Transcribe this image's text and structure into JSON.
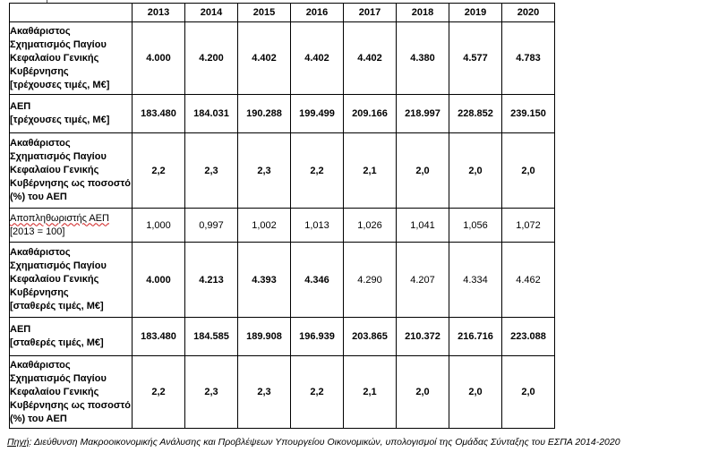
{
  "table": {
    "years": [
      "2013",
      "2014",
      "2015",
      "2016",
      "2017",
      "2018",
      "2019",
      "2020"
    ],
    "rows": [
      {
        "label_lines": [
          "Ακαθάριστος Σχηματισμός Παγίου Κεφαλαίου Γενικής Κυβέρνησης",
          "[τρέχουσες τιμές, Μ€]"
        ],
        "values": [
          "4.000",
          "4.200",
          "4.402",
          "4.402",
          "4.402",
          "4.380",
          "4.577",
          "4.783"
        ]
      },
      {
        "label_lines": [
          "ΑΕΠ",
          "[τρέχουσες τιμές, Μ€]"
        ],
        "values": [
          "183.480",
          "184.031",
          "190.288",
          "199.499",
          "209.166",
          "218.997",
          "228.852",
          "239.150"
        ]
      },
      {
        "label_lines": [
          "Ακαθάριστος Σχηματισμός Παγίου Κεφαλαίου Γενικής Κυβέρνησης ως ποσοστό (%) του ΑΕΠ"
        ],
        "values": [
          "2,2",
          "2,3",
          "2,3",
          "2,2",
          "2,1",
          "2,0",
          "2,0",
          "2,0"
        ]
      },
      {
        "label_lines": [
          "Αποπληθωριστής ΑΕΠ",
          "[2013 = 100]"
        ],
        "values": [
          "1,000",
          "0,997",
          "1,002",
          "1,013",
          "1,026",
          "1,041",
          "1,056",
          "1,072"
        ]
      },
      {
        "label_lines": [
          "Ακαθάριστος Σχηματισμός Παγίου Κεφαλαίου Γενικής Κυβέρνησης",
          "[σταθερές τιμές, Μ€]"
        ],
        "values": [
          "4.000",
          "4.213",
          "4.393",
          "4.346",
          "4.290",
          "4.207",
          "4.334",
          "4.462"
        ]
      },
      {
        "label_lines": [
          "ΑΕΠ",
          "[σταθερές τιμές, Μ€]"
        ],
        "values": [
          "183.480",
          "184.585",
          "189.908",
          "196.939",
          "203.865",
          "210.372",
          "216.716",
          "223.088"
        ]
      },
      {
        "label_lines": [
          "Ακαθάριστος Σχηματισμός Παγίου Κεφαλαίου Γενικής Κυβέρνησης ως ποσοστό (%) του ΑΕΠ"
        ],
        "values": [
          "2,2",
          "2,3",
          "2,3",
          "2,2",
          "2,1",
          "2,0",
          "2,0",
          "2,0"
        ]
      }
    ]
  },
  "source": {
    "label": "Πηγή",
    "text": ": Διεύθυνση Μακροοικονομικής Ανάλυσης και Προβλέψεων Υπουργείου Οικονομικών,  υπολογισμοί της Ομάδας Σύνταξης του ΕΣΠΑ 2014-2020"
  }
}
